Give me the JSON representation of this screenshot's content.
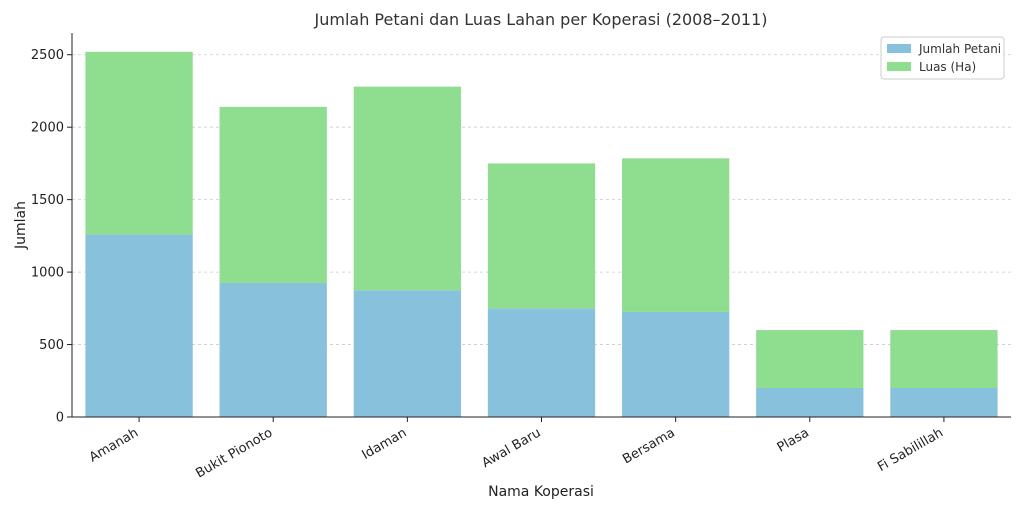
{
  "chart_data": {
    "type": "bar",
    "stacked": true,
    "title": "Jumlah Petani dan Luas Lahan per Koperasi (2008–2011)",
    "xlabel": "Nama Koperasi",
    "ylabel": "Jumlah",
    "categories": [
      "Amanah",
      "Bukit Pionoto",
      "Idaman",
      "Awal Baru",
      "Bersama",
      "Plasa",
      "Fi Sabilillah"
    ],
    "series": [
      {
        "name": "Jumlah Petani",
        "color": "#87c1dc",
        "values": [
          1260,
          925,
          875,
          750,
          725,
          200,
          200
        ]
      },
      {
        "name": "Luas (Ha)",
        "color": "#8fdd8f",
        "values": [
          1260,
          1215,
          1405,
          1000,
          1060,
          400,
          400
        ]
      }
    ],
    "ylim": [
      0,
      2650
    ],
    "yticks": [
      0,
      500,
      1000,
      1500,
      2000,
      2500
    ],
    "grid": "y-dashed",
    "legend_position": "top-right"
  }
}
